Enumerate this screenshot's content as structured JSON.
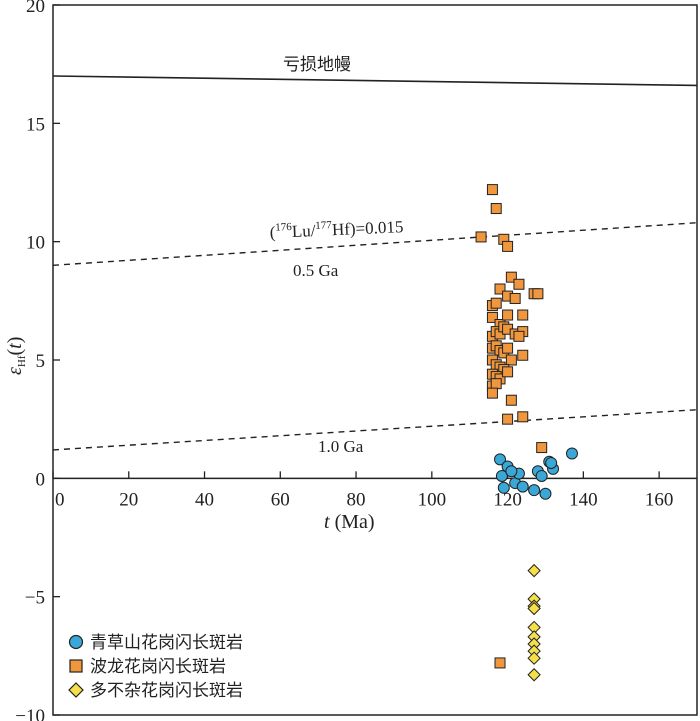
{
  "chart_data": {
    "type": "scatter",
    "xlabel": "t (Ma)",
    "ylabel": "εHf(t)",
    "xlim": [
      0,
      170
    ],
    "ylim": [
      -10,
      20
    ],
    "x_ticks": [
      0,
      20,
      40,
      60,
      80,
      100,
      120,
      140,
      160
    ],
    "y_ticks": [
      -10,
      -5,
      0,
      5,
      10,
      15,
      20
    ],
    "y_tick_labels": [
      "−10",
      "−5",
      "0",
      "5",
      "10",
      "15",
      "20"
    ],
    "x_axis_at_y": 0,
    "grid": false,
    "legend_position": "bottom-left",
    "reference_lines": [
      {
        "label": "亏损地幔",
        "x": [
          0,
          170
        ],
        "y": [
          17.0,
          16.6
        ],
        "style": "solid"
      },
      {
        "label": "(176Lu/177Hf)=0.015",
        "x": [
          0,
          170
        ],
        "y": [
          9.0,
          10.8
        ],
        "style": "dashed",
        "sublabel": "0.5 Ga"
      },
      {
        "label": "1.0 Ga",
        "x": [
          0,
          170
        ],
        "y": [
          1.2,
          2.9
        ],
        "style": "dashed"
      }
    ],
    "series": [
      {
        "name": "青草山花岗闪长斑岩",
        "marker": "circle",
        "color": "#3aa8d6",
        "points": [
          [
            118,
            0.8
          ],
          [
            120,
            0.5
          ],
          [
            118.5,
            0.1
          ],
          [
            122,
            -0.2
          ],
          [
            123,
            0.2
          ],
          [
            124,
            -0.35
          ],
          [
            119,
            -0.4
          ],
          [
            127,
            -0.5
          ],
          [
            128,
            0.3
          ],
          [
            129,
            0.1
          ],
          [
            130,
            -0.65
          ],
          [
            131,
            0.7
          ],
          [
            132,
            0.4
          ],
          [
            131.5,
            0.65
          ],
          [
            137,
            1.05
          ],
          [
            121,
            0.3
          ]
        ]
      },
      {
        "name": "波龙花岗闪长斑岩",
        "marker": "square",
        "color": "#f0963c",
        "points": [
          [
            116,
            12.2
          ],
          [
            117,
            11.4
          ],
          [
            113,
            10.2
          ],
          [
            119,
            10.1
          ],
          [
            120,
            9.8
          ],
          [
            121,
            8.5
          ],
          [
            123,
            8.2
          ],
          [
            118,
            8.0
          ],
          [
            116,
            7.3
          ],
          [
            117,
            7.4
          ],
          [
            120,
            7.7
          ],
          [
            122,
            7.6
          ],
          [
            127,
            7.8
          ],
          [
            128,
            7.8
          ],
          [
            116,
            6.8
          ],
          [
            118,
            6.5
          ],
          [
            120,
            6.9
          ],
          [
            124,
            6.9
          ],
          [
            116,
            6.0
          ],
          [
            117,
            6.2
          ],
          [
            118,
            6.1
          ],
          [
            119,
            6.4
          ],
          [
            120,
            6.3
          ],
          [
            122,
            6.1
          ],
          [
            124,
            6.2
          ],
          [
            123,
            6.0
          ],
          [
            116,
            5.5
          ],
          [
            117,
            5.6
          ],
          [
            118,
            5.4
          ],
          [
            119,
            5.3
          ],
          [
            120,
            5.5
          ],
          [
            121,
            5.0
          ],
          [
            124,
            5.2
          ],
          [
            116,
            5.0
          ],
          [
            117,
            4.8
          ],
          [
            118,
            4.7
          ],
          [
            119,
            4.6
          ],
          [
            116,
            4.4
          ],
          [
            117,
            4.3
          ],
          [
            118,
            4.2
          ],
          [
            120,
            4.5
          ],
          [
            116,
            3.9
          ],
          [
            117,
            4.0
          ],
          [
            116,
            3.6
          ],
          [
            121,
            3.3
          ],
          [
            120,
            2.5
          ],
          [
            124,
            2.6
          ],
          [
            129,
            1.3
          ],
          [
            118,
            -7.8
          ]
        ]
      },
      {
        "name": "多不杂花岗闪长斑岩",
        "marker": "diamond",
        "color": "#f5e04a",
        "points": [
          [
            127,
            -3.9
          ],
          [
            127,
            -5.1
          ],
          [
            127,
            -5.4
          ],
          [
            127,
            -5.5
          ],
          [
            127,
            -6.3
          ],
          [
            127,
            -6.7
          ],
          [
            127,
            -7.0
          ],
          [
            127,
            -7.3
          ],
          [
            127,
            -7.6
          ],
          [
            127,
            -8.3
          ]
        ]
      }
    ]
  }
}
